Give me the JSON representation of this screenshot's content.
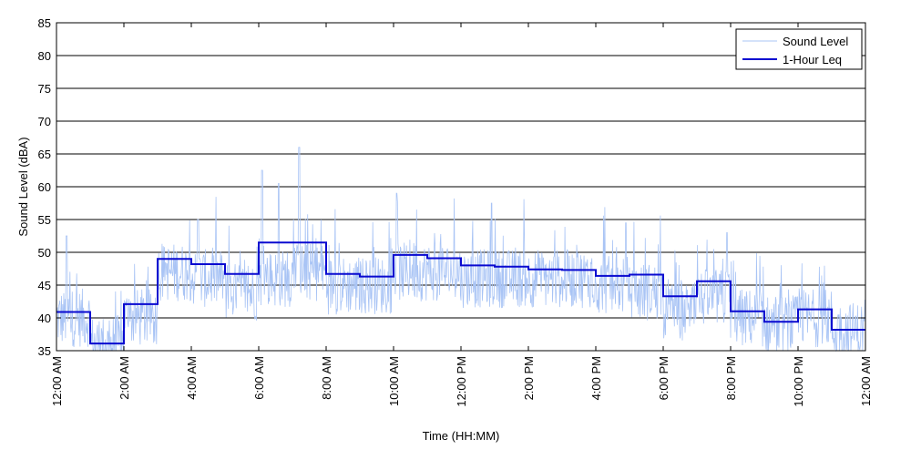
{
  "chart_data": {
    "type": "line",
    "xlabel": "Time (HH:MM)",
    "ylabel": "Sound Level (dBA)",
    "xlim": [
      0,
      24
    ],
    "ylim": [
      35,
      85
    ],
    "grid": "horizontal",
    "legend_position": "top-right",
    "x_ticks": [
      0,
      2,
      4,
      6,
      8,
      10,
      12,
      14,
      16,
      18,
      20,
      22,
      24
    ],
    "x_tick_labels": [
      "12:00 AM",
      "2:00 AM",
      "4:00 AM",
      "6:00 AM",
      "8:00 AM",
      "10:00 AM",
      "12:00 PM",
      "2:00 PM",
      "4:00 PM",
      "6:00 PM",
      "8:00 PM",
      "10:00 PM",
      "12:00 AM"
    ],
    "y_ticks": [
      35,
      40,
      45,
      50,
      55,
      60,
      65,
      70,
      75,
      80,
      85
    ],
    "y_tick_labels": [
      "35",
      "40",
      "45",
      "50",
      "55",
      "60",
      "65",
      "70",
      "75",
      "80",
      "85"
    ],
    "series": [
      {
        "name": "Sound Level",
        "color": "#a9c4f5",
        "style": "thin-line",
        "mean_by_hour": [
          40,
          36,
          40,
          47,
          46,
          44,
          46,
          47,
          45,
          45,
          47,
          47,
          46,
          46,
          46,
          46,
          45,
          44,
          41,
          43,
          40,
          39,
          40,
          38
        ],
        "peaks": [
          {
            "x": 0.3,
            "y": 52.5
          },
          {
            "x": 4.2,
            "y": 55
          },
          {
            "x": 6.1,
            "y": 62.5
          },
          {
            "x": 6.6,
            "y": 60.5
          },
          {
            "x": 7.2,
            "y": 66
          },
          {
            "x": 10.1,
            "y": 59
          },
          {
            "x": 12.9,
            "y": 57.5
          },
          {
            "x": 16.9,
            "y": 54.5
          },
          {
            "x": 19.9,
            "y": 53
          }
        ]
      },
      {
        "name": "1-Hour Leq",
        "color": "#0a0ad0",
        "style": "step",
        "values": [
          40.9,
          36.1,
          42.1,
          49.0,
          48.2,
          46.7,
          51.5,
          51.5,
          46.7,
          46.3,
          49.6,
          49.1,
          48.0,
          47.8,
          47.4,
          47.3,
          46.4,
          46.6,
          43.3,
          45.6,
          41.0,
          39.4,
          41.3,
          38.2
        ]
      }
    ]
  }
}
